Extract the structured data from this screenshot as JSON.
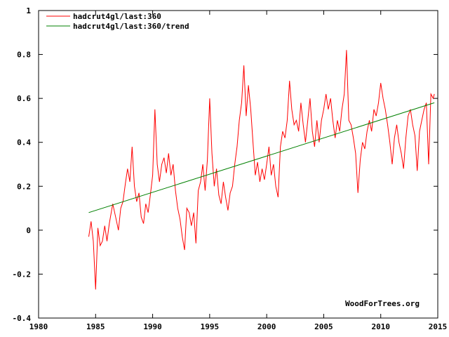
{
  "chart_data": {
    "type": "line",
    "title": "",
    "xlabel": "",
    "ylabel": "",
    "xlim": [
      1980,
      2015
    ],
    "ylim": [
      -0.4,
      1.0
    ],
    "grid": false,
    "legend_position": "top-left",
    "watermark": "WoodForTrees.org",
    "x_ticks": [
      1980,
      1985,
      1990,
      1995,
      2000,
      2005,
      2010,
      2015
    ],
    "x_tick_labels": [
      "1980",
      "1985",
      "1990",
      "1995",
      "2000",
      "2005",
      "2010",
      "2015"
    ],
    "y_ticks": [
      -0.4,
      -0.2,
      0,
      0.2,
      0.4,
      0.6,
      0.8,
      1.0
    ],
    "y_tick_labels": [
      "-0.4",
      "-0.2",
      "0",
      "0.2",
      "0.4",
      "0.6",
      "0.8",
      "1"
    ],
    "series": [
      {
        "name": "hadcrut4gl/last:360",
        "color": "#ff0000",
        "points": [
          [
            1984.4,
            -0.03
          ],
          [
            1984.6,
            0.04
          ],
          [
            1984.8,
            -0.05
          ],
          [
            1985.0,
            -0.27
          ],
          [
            1985.2,
            0.01
          ],
          [
            1985.4,
            -0.07
          ],
          [
            1985.6,
            -0.05
          ],
          [
            1985.8,
            0.02
          ],
          [
            1986.0,
            -0.05
          ],
          [
            1986.2,
            0.03
          ],
          [
            1986.5,
            0.12
          ],
          [
            1986.8,
            0.05
          ],
          [
            1987.0,
            0.0
          ],
          [
            1987.2,
            0.1
          ],
          [
            1987.4,
            0.13
          ],
          [
            1987.6,
            0.21
          ],
          [
            1987.8,
            0.28
          ],
          [
            1988.0,
            0.22
          ],
          [
            1988.2,
            0.38
          ],
          [
            1988.4,
            0.2
          ],
          [
            1988.6,
            0.13
          ],
          [
            1988.8,
            0.17
          ],
          [
            1989.0,
            0.06
          ],
          [
            1989.2,
            0.03
          ],
          [
            1989.4,
            0.12
          ],
          [
            1989.6,
            0.08
          ],
          [
            1989.8,
            0.16
          ],
          [
            1990.0,
            0.25
          ],
          [
            1990.2,
            0.55
          ],
          [
            1990.4,
            0.3
          ],
          [
            1990.6,
            0.22
          ],
          [
            1990.8,
            0.3
          ],
          [
            1991.0,
            0.33
          ],
          [
            1991.2,
            0.26
          ],
          [
            1991.4,
            0.35
          ],
          [
            1991.6,
            0.25
          ],
          [
            1991.8,
            0.3
          ],
          [
            1992.0,
            0.18
          ],
          [
            1992.2,
            0.1
          ],
          [
            1992.4,
            0.05
          ],
          [
            1992.6,
            -0.03
          ],
          [
            1992.8,
            -0.09
          ],
          [
            1993.0,
            0.1
          ],
          [
            1993.2,
            0.08
          ],
          [
            1993.4,
            0.02
          ],
          [
            1993.6,
            0.08
          ],
          [
            1993.8,
            -0.06
          ],
          [
            1994.0,
            0.18
          ],
          [
            1994.2,
            0.22
          ],
          [
            1994.4,
            0.3
          ],
          [
            1994.6,
            0.18
          ],
          [
            1994.8,
            0.32
          ],
          [
            1995.0,
            0.6
          ],
          [
            1995.2,
            0.35
          ],
          [
            1995.4,
            0.2
          ],
          [
            1995.6,
            0.28
          ],
          [
            1995.8,
            0.16
          ],
          [
            1996.0,
            0.12
          ],
          [
            1996.2,
            0.22
          ],
          [
            1996.4,
            0.15
          ],
          [
            1996.6,
            0.09
          ],
          [
            1996.8,
            0.17
          ],
          [
            1997.0,
            0.2
          ],
          [
            1997.2,
            0.3
          ],
          [
            1997.4,
            0.38
          ],
          [
            1997.6,
            0.5
          ],
          [
            1997.8,
            0.58
          ],
          [
            1998.0,
            0.75
          ],
          [
            1998.2,
            0.52
          ],
          [
            1998.4,
            0.66
          ],
          [
            1998.6,
            0.55
          ],
          [
            1998.8,
            0.4
          ],
          [
            1999.0,
            0.25
          ],
          [
            1999.2,
            0.31
          ],
          [
            1999.4,
            0.22
          ],
          [
            1999.6,
            0.28
          ],
          [
            1999.8,
            0.23
          ],
          [
            2000.0,
            0.3
          ],
          [
            2000.2,
            0.38
          ],
          [
            2000.4,
            0.25
          ],
          [
            2000.6,
            0.3
          ],
          [
            2000.8,
            0.2
          ],
          [
            2001.0,
            0.15
          ],
          [
            2001.2,
            0.38
          ],
          [
            2001.4,
            0.45
          ],
          [
            2001.6,
            0.42
          ],
          [
            2001.8,
            0.5
          ],
          [
            2002.0,
            0.68
          ],
          [
            2002.2,
            0.55
          ],
          [
            2002.4,
            0.48
          ],
          [
            2002.6,
            0.5
          ],
          [
            2002.8,
            0.45
          ],
          [
            2003.0,
            0.58
          ],
          [
            2003.2,
            0.48
          ],
          [
            2003.4,
            0.4
          ],
          [
            2003.6,
            0.5
          ],
          [
            2003.8,
            0.6
          ],
          [
            2004.0,
            0.45
          ],
          [
            2004.2,
            0.38
          ],
          [
            2004.4,
            0.5
          ],
          [
            2004.6,
            0.4
          ],
          [
            2004.8,
            0.5
          ],
          [
            2005.0,
            0.55
          ],
          [
            2005.2,
            0.62
          ],
          [
            2005.4,
            0.55
          ],
          [
            2005.6,
            0.6
          ],
          [
            2005.8,
            0.5
          ],
          [
            2006.0,
            0.42
          ],
          [
            2006.2,
            0.5
          ],
          [
            2006.4,
            0.45
          ],
          [
            2006.6,
            0.55
          ],
          [
            2006.8,
            0.62
          ],
          [
            2007.0,
            0.82
          ],
          [
            2007.2,
            0.5
          ],
          [
            2007.4,
            0.48
          ],
          [
            2007.6,
            0.42
          ],
          [
            2007.8,
            0.35
          ],
          [
            2008.0,
            0.17
          ],
          [
            2008.2,
            0.32
          ],
          [
            2008.4,
            0.4
          ],
          [
            2008.6,
            0.37
          ],
          [
            2008.8,
            0.45
          ],
          [
            2009.0,
            0.5
          ],
          [
            2009.2,
            0.45
          ],
          [
            2009.4,
            0.55
          ],
          [
            2009.6,
            0.52
          ],
          [
            2009.8,
            0.58
          ],
          [
            2010.0,
            0.67
          ],
          [
            2010.2,
            0.6
          ],
          [
            2010.4,
            0.55
          ],
          [
            2010.6,
            0.48
          ],
          [
            2010.8,
            0.4
          ],
          [
            2011.0,
            0.3
          ],
          [
            2011.2,
            0.42
          ],
          [
            2011.4,
            0.48
          ],
          [
            2011.6,
            0.4
          ],
          [
            2011.8,
            0.35
          ],
          [
            2012.0,
            0.28
          ],
          [
            2012.2,
            0.42
          ],
          [
            2012.4,
            0.52
          ],
          [
            2012.6,
            0.55
          ],
          [
            2012.8,
            0.48
          ],
          [
            2013.0,
            0.43
          ],
          [
            2013.2,
            0.27
          ],
          [
            2013.4,
            0.45
          ],
          [
            2013.6,
            0.5
          ],
          [
            2013.8,
            0.55
          ],
          [
            2014.0,
            0.58
          ],
          [
            2014.2,
            0.3
          ],
          [
            2014.4,
            0.62
          ],
          [
            2014.6,
            0.6
          ],
          [
            2014.7,
            0.62
          ]
        ]
      },
      {
        "name": "hadcrut4gl/last:360/trend",
        "color": "#008000",
        "points": [
          [
            1984.4,
            0.08
          ],
          [
            2014.7,
            0.58
          ]
        ]
      }
    ]
  }
}
